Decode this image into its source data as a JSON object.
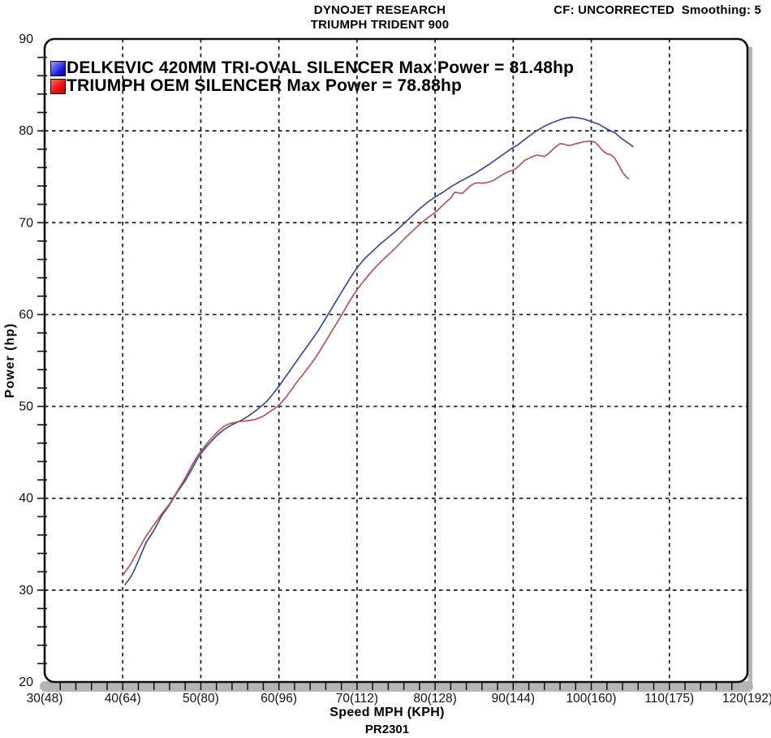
{
  "header": {
    "title": "DYNOJET RESEARCH",
    "subtitle": "TRIUMPH TRIDENT 900",
    "correction_info": "CF: UNCORRECTED  Smoothing: 5"
  },
  "footer": {
    "run_id": "PR2301"
  },
  "colors": {
    "plot_bg": "#ffffff",
    "axis": "#101010",
    "grid": "#1d1d1d",
    "text": "#111111",
    "shadow_gray": "#b5b5b5",
    "delkevic_line": "#3b4d95",
    "oem_line": "#b25757"
  },
  "chart_data": {
    "type": "line",
    "title": "DYNOJET RESEARCH",
    "subtitle": "TRIUMPH TRIDENT 900",
    "annotation": "CF: UNCORRECTED  Smoothing: 5",
    "xlabel": "Speed MPH (KPH)",
    "ylabel": "Power (hp)",
    "xlim": [
      30,
      120
    ],
    "ylim": [
      20,
      90
    ],
    "grid": "dashed",
    "legend_position": "top-left-inside",
    "x_minor_step": 2,
    "y_minor_step": 2,
    "y_ticks": [
      20,
      30,
      40,
      50,
      60,
      70,
      80,
      90
    ],
    "x_ticks": [
      {
        "mph": 30,
        "label": "30(48)"
      },
      {
        "mph": 40,
        "label": "40(64)"
      },
      {
        "mph": 50,
        "label": "50(80)"
      },
      {
        "mph": 60,
        "label": "60(96)"
      },
      {
        "mph": 70,
        "label": "70(112)"
      },
      {
        "mph": 80,
        "label": "80(128)"
      },
      {
        "mph": 90,
        "label": "90(144)"
      },
      {
        "mph": 100,
        "label": "100(160)"
      },
      {
        "mph": 110,
        "label": "110(175)"
      },
      {
        "mph": 120,
        "label": "120(192)"
      }
    ],
    "series": [
      {
        "name": "DELKEVIC 420MM TRI-OVAL SILENCER",
        "legend_label": "DELKEVIC 420MM TRI-OVAL SILENCER Max Power = 81.48hp",
        "max_power_hp": 81.48,
        "color": "#3b4d95",
        "points": [
          [
            40.3,
            30.6
          ],
          [
            41,
            31.4
          ],
          [
            41.5,
            32.2
          ],
          [
            42,
            33.2
          ],
          [
            42.5,
            34.2
          ],
          [
            43,
            35.2
          ],
          [
            44,
            36.5
          ],
          [
            45,
            38.1
          ],
          [
            46,
            39.3
          ],
          [
            47,
            40.7
          ],
          [
            48,
            41.9
          ],
          [
            49,
            43.4
          ],
          [
            49.5,
            44.2
          ],
          [
            50,
            44.85
          ],
          [
            50.5,
            45.4
          ],
          [
            51,
            45.9
          ],
          [
            52,
            46.8
          ],
          [
            52.5,
            47.15
          ],
          [
            53,
            47.5
          ],
          [
            54,
            48.0
          ],
          [
            54.5,
            48.2
          ],
          [
            55,
            48.4
          ],
          [
            56,
            48.9
          ],
          [
            57,
            49.5
          ],
          [
            58,
            50.2
          ],
          [
            58.5,
            50.6
          ],
          [
            59,
            51.1
          ],
          [
            60,
            52.2
          ],
          [
            61,
            53.4
          ],
          [
            62,
            54.6
          ],
          [
            63,
            55.8
          ],
          [
            64,
            57.0
          ],
          [
            65,
            58.2
          ],
          [
            66,
            59.6
          ],
          [
            67,
            61.0
          ],
          [
            68,
            62.4
          ],
          [
            69,
            63.8
          ],
          [
            70,
            65.1
          ],
          [
            71,
            66.1
          ],
          [
            72,
            66.9
          ],
          [
            73,
            67.7
          ],
          [
            74,
            68.4
          ],
          [
            75,
            69.1
          ],
          [
            76,
            69.9
          ],
          [
            77,
            70.7
          ],
          [
            78,
            71.5
          ],
          [
            79,
            72.2
          ],
          [
            80,
            72.8
          ],
          [
            81,
            73.3
          ],
          [
            82,
            73.9
          ],
          [
            83,
            74.4
          ],
          [
            84,
            74.85
          ],
          [
            85,
            75.3
          ],
          [
            86,
            75.85
          ],
          [
            87,
            76.4
          ],
          [
            88,
            77.0
          ],
          [
            89,
            77.6
          ],
          [
            90,
            78.2
          ],
          [
            90.5,
            78.4
          ],
          [
            91,
            78.75
          ],
          [
            92,
            79.4
          ],
          [
            93,
            80.0
          ],
          [
            94,
            80.5
          ],
          [
            95,
            80.9
          ],
          [
            96,
            81.2
          ],
          [
            96.5,
            81.35
          ],
          [
            97,
            81.42
          ],
          [
            97.5,
            81.48
          ],
          [
            98,
            81.45
          ],
          [
            99,
            81.3
          ],
          [
            99.5,
            81.15
          ],
          [
            100,
            81.0
          ],
          [
            101,
            80.7
          ],
          [
            102,
            80.2
          ],
          [
            103,
            79.8
          ],
          [
            103.5,
            79.45
          ],
          [
            104,
            79.1
          ],
          [
            104.5,
            78.8
          ],
          [
            105,
            78.5
          ],
          [
            105.3,
            78.3
          ]
        ]
      },
      {
        "name": "TRIUMPH OEM SILENCER",
        "legend_label": "TRIUMPH OEM SILENCER Max Power = 78.88hp",
        "max_power_hp": 78.88,
        "color": "#b25757",
        "points": [
          [
            40,
            31.6
          ],
          [
            40.5,
            32.2
          ],
          [
            41,
            32.8
          ],
          [
            41.5,
            33.6
          ],
          [
            42,
            34.4
          ],
          [
            43,
            35.9
          ],
          [
            44,
            37.1
          ],
          [
            45,
            38.3
          ],
          [
            46,
            39.4
          ],
          [
            47,
            40.8
          ],
          [
            48,
            42.2
          ],
          [
            48.5,
            43.0
          ],
          [
            49,
            43.8
          ],
          [
            49.5,
            44.5
          ],
          [
            50,
            45.1
          ],
          [
            51,
            46.2
          ],
          [
            52,
            47.1
          ],
          [
            52.5,
            47.5
          ],
          [
            53,
            47.85
          ],
          [
            53.5,
            48.05
          ],
          [
            54,
            48.2
          ],
          [
            55,
            48.35
          ],
          [
            56,
            48.45
          ],
          [
            56.5,
            48.5
          ],
          [
            57,
            48.6
          ],
          [
            57.5,
            48.75
          ],
          [
            58,
            48.95
          ],
          [
            59,
            49.5
          ],
          [
            60,
            50.1
          ],
          [
            61,
            51.1
          ],
          [
            62,
            52.3
          ],
          [
            63,
            53.4
          ],
          [
            64,
            54.5
          ],
          [
            65,
            55.7
          ],
          [
            66,
            57.1
          ],
          [
            67,
            58.5
          ],
          [
            68,
            59.9
          ],
          [
            69,
            61.4
          ],
          [
            70,
            62.7
          ],
          [
            71,
            63.8
          ],
          [
            72,
            64.8
          ],
          [
            73,
            65.7
          ],
          [
            74,
            66.5
          ],
          [
            75,
            67.3
          ],
          [
            76,
            68.2
          ],
          [
            77,
            69.0
          ],
          [
            78,
            69.8
          ],
          [
            79,
            70.5
          ],
          [
            80,
            71.1
          ],
          [
            81,
            71.9
          ],
          [
            82,
            72.7
          ],
          [
            82.5,
            73.3
          ],
          [
            83,
            73.25
          ],
          [
            83.5,
            73.2
          ],
          [
            84,
            73.6
          ],
          [
            84.5,
            74.0
          ],
          [
            85,
            74.25
          ],
          [
            85.5,
            74.35
          ],
          [
            86,
            74.3
          ],
          [
            86.5,
            74.35
          ],
          [
            87,
            74.45
          ],
          [
            87.5,
            74.6
          ],
          [
            88,
            74.9
          ],
          [
            88.5,
            75.15
          ],
          [
            89,
            75.4
          ],
          [
            89.5,
            75.6
          ],
          [
            90,
            75.7
          ],
          [
            90.5,
            76.0
          ],
          [
            91,
            76.4
          ],
          [
            91.5,
            76.8
          ],
          [
            92,
            77.0
          ],
          [
            92.5,
            77.2
          ],
          [
            93,
            77.35
          ],
          [
            93.5,
            77.3
          ],
          [
            94,
            77.2
          ],
          [
            94.5,
            77.5
          ],
          [
            95,
            77.9
          ],
          [
            95.5,
            78.3
          ],
          [
            96,
            78.6
          ],
          [
            96.5,
            78.55
          ],
          [
            97,
            78.4
          ],
          [
            97.5,
            78.45
          ],
          [
            98,
            78.6
          ],
          [
            98.5,
            78.7
          ],
          [
            99,
            78.8
          ],
          [
            99.5,
            78.85
          ],
          [
            100,
            78.88
          ],
          [
            100.5,
            78.75
          ],
          [
            101,
            78.3
          ],
          [
            101.5,
            77.8
          ],
          [
            102,
            77.5
          ],
          [
            102.5,
            77.4
          ],
          [
            103,
            77.0
          ],
          [
            103.5,
            76.3
          ],
          [
            104,
            75.5
          ],
          [
            104.5,
            74.95
          ],
          [
            104.8,
            74.8
          ]
        ]
      }
    ]
  }
}
